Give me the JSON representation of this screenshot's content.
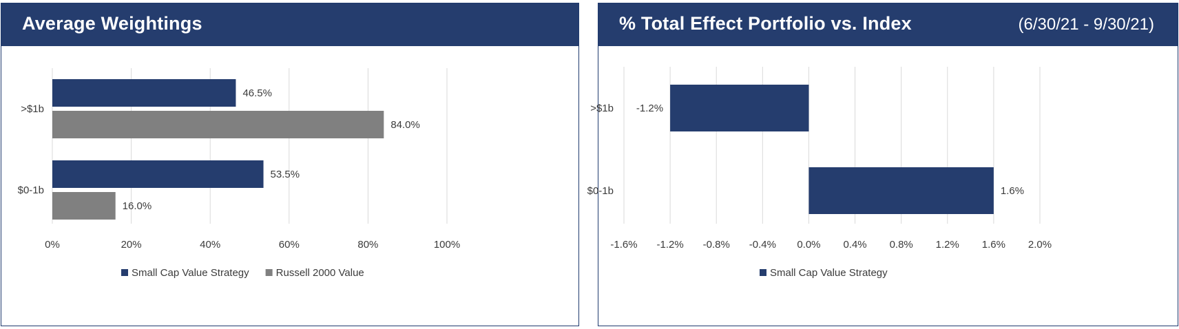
{
  "chart_data": [
    {
      "type": "bar",
      "orientation": "horizontal",
      "title": "Average Weightings",
      "categories": [
        ">$1b",
        "$0-1b"
      ],
      "series": [
        {
          "name": "Small Cap Value Strategy",
          "values": [
            46.5,
            53.5
          ],
          "labels": [
            "46.5%",
            "53.5%"
          ],
          "color": "#253d6e"
        },
        {
          "name": "Russell 2000 Value",
          "values": [
            84.0,
            16.0
          ],
          "labels": [
            "84.0%",
            "16.0%"
          ],
          "color": "#808080"
        }
      ],
      "xlim": [
        0,
        100
      ],
      "xticks": [
        0,
        20,
        40,
        60,
        80,
        100
      ],
      "xtick_labels": [
        "0%",
        "20%",
        "40%",
        "60%",
        "80%",
        "100%"
      ],
      "grid": "vertical",
      "legend_position": "bottom"
    },
    {
      "type": "bar",
      "orientation": "horizontal",
      "title": "% Total Effect Portfolio vs. Index",
      "subtitle": "(6/30/21 - 9/30/21)",
      "categories": [
        ">$1b",
        "$0-1b"
      ],
      "series": [
        {
          "name": "Small Cap Value Strategy",
          "values": [
            -1.2,
            1.6
          ],
          "labels": [
            "-1.2%",
            "1.6%"
          ],
          "color": "#253d6e"
        }
      ],
      "xlim": [
        -1.6,
        2.0
      ],
      "xticks": [
        -1.6,
        -1.2,
        -0.8,
        -0.4,
        0.0,
        0.4,
        0.8,
        1.2,
        1.6,
        2.0
      ],
      "xtick_labels": [
        "-1.6%",
        "-1.2%",
        "-0.8%",
        "-0.4%",
        "0.0%",
        "0.4%",
        "0.8%",
        "1.2%",
        "1.6%",
        "2.0%"
      ],
      "grid": "vertical",
      "legend_position": "bottom"
    }
  ]
}
